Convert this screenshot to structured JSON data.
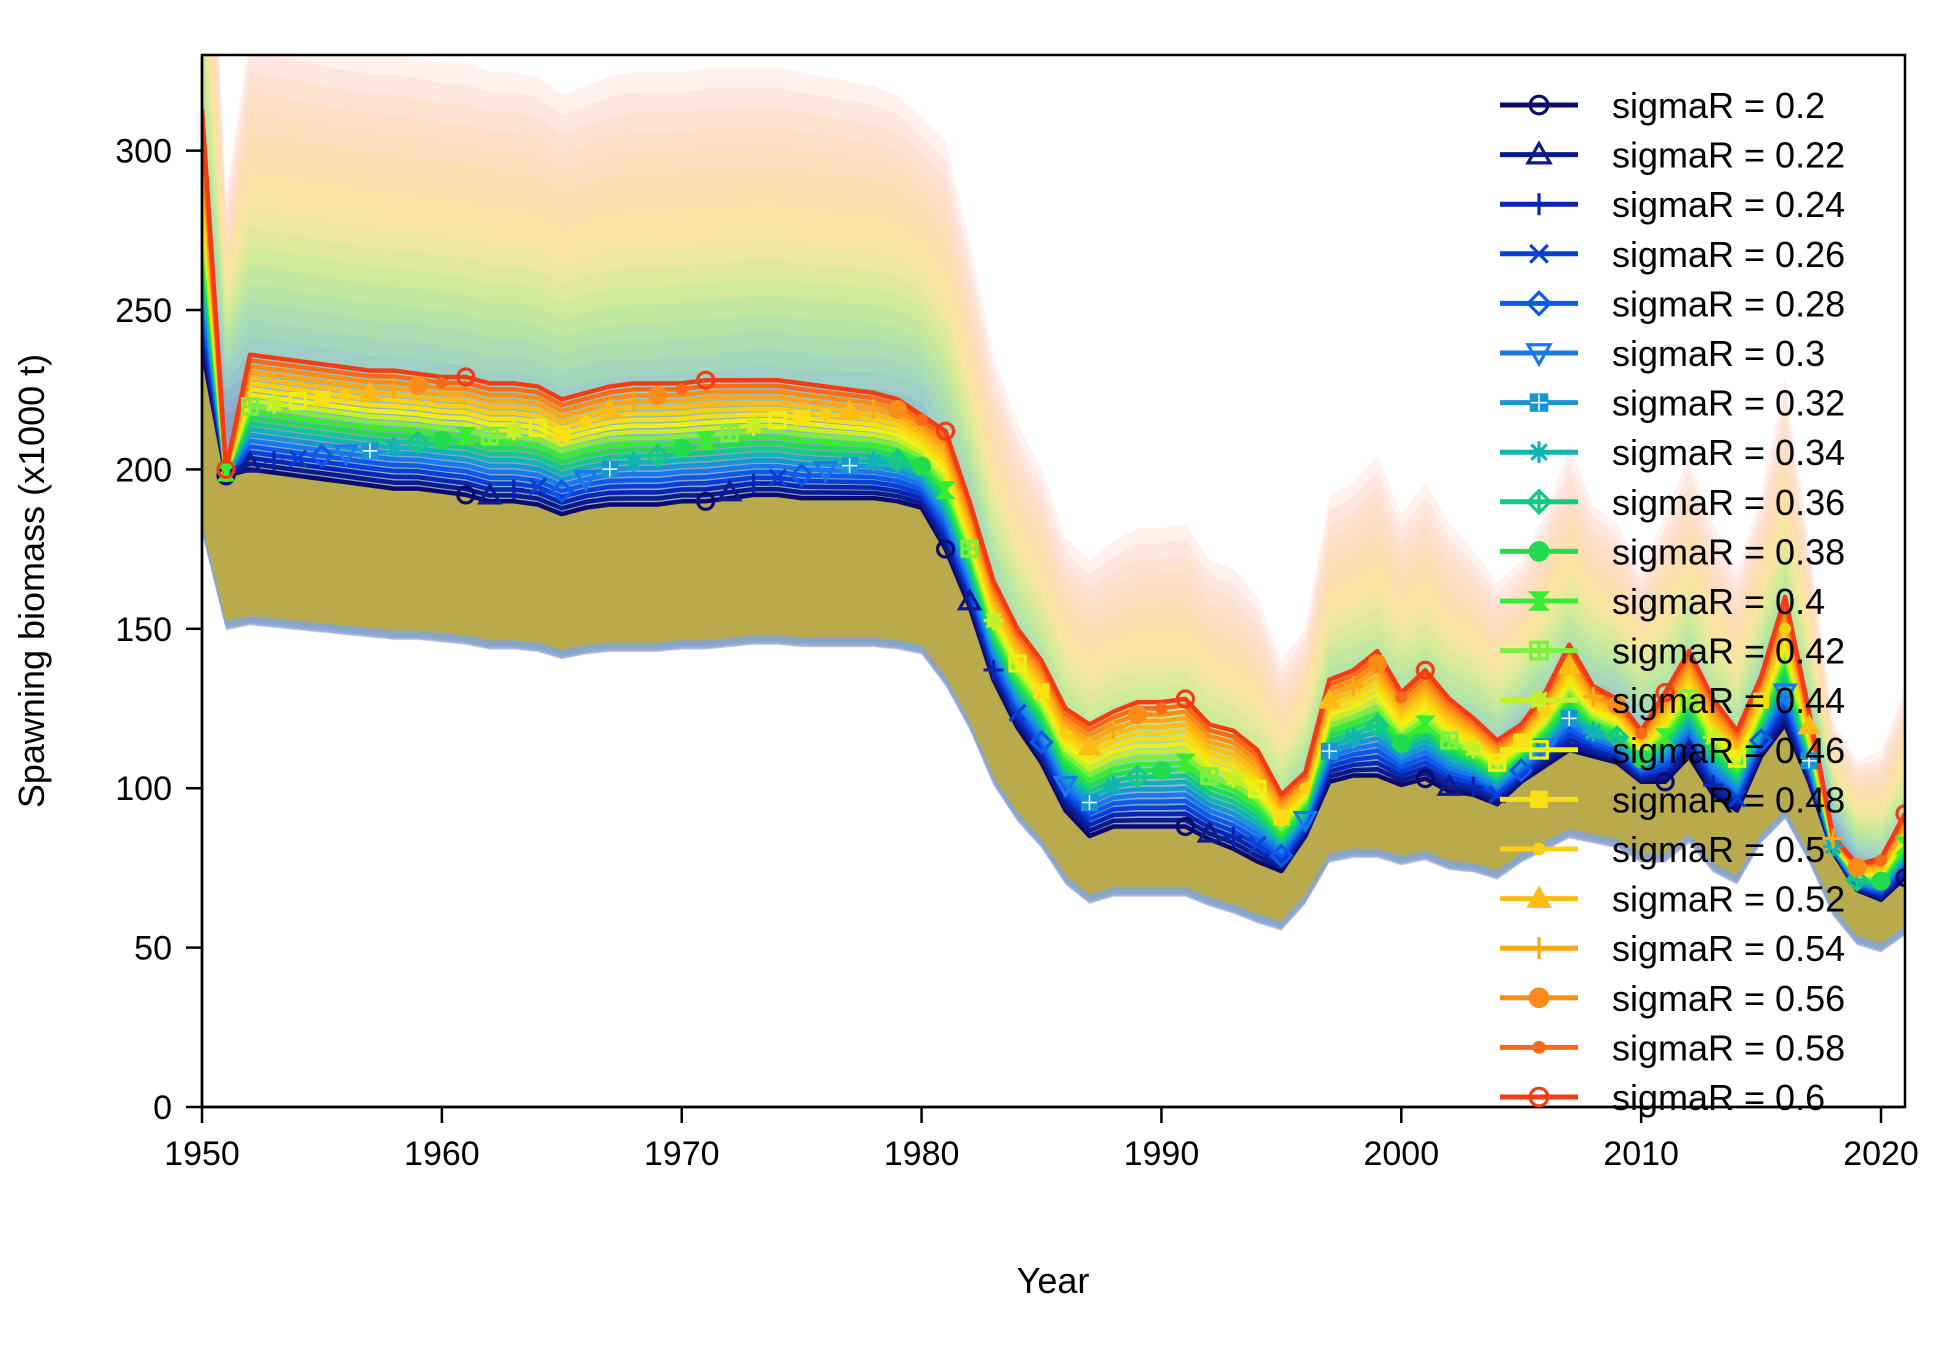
{
  "chart_data": {
    "type": "line",
    "title": "",
    "xlabel": "Year",
    "ylabel": "Spawning biomass (x1000 t)",
    "xlim": [
      1950,
      2021
    ],
    "ylim": [
      0,
      330
    ],
    "x_ticks": [
      "1950",
      "1960",
      "1970",
      "1980",
      "1990",
      "2000",
      "2010",
      "2020"
    ],
    "y_ticks": [
      "0",
      "50",
      "100",
      "150",
      "200",
      "250",
      "300"
    ],
    "legend_position": "top-right",
    "years": [
      1950,
      1951,
      1952,
      1953,
      1954,
      1955,
      1956,
      1957,
      1958,
      1959,
      1960,
      1961,
      1962,
      1963,
      1964,
      1965,
      1966,
      1967,
      1968,
      1969,
      1970,
      1971,
      1972,
      1973,
      1974,
      1975,
      1976,
      1977,
      1978,
      1979,
      1980,
      1981,
      1982,
      1983,
      1984,
      1985,
      1986,
      1987,
      1988,
      1989,
      1990,
      1991,
      1992,
      1993,
      1994,
      1995,
      1996,
      1997,
      1998,
      1999,
      2000,
      2001,
      2002,
      2003,
      2004,
      2005,
      2006,
      2007,
      2008,
      2009,
      2010,
      2011,
      2012,
      2013,
      2014,
      2015,
      2016,
      2017,
      2018,
      2019,
      2020,
      2021
    ],
    "low_series": {
      "name": "sigmaR = 0.2",
      "values": [
        238,
        198,
        200,
        199,
        198,
        197,
        196,
        195,
        194,
        194,
        193,
        192,
        190,
        190,
        189,
        186,
        188,
        189,
        189,
        189,
        190,
        190,
        191,
        192,
        192,
        191,
        191,
        191,
        191,
        190,
        188,
        175,
        157,
        134,
        119,
        108,
        93,
        85,
        88,
        88,
        88,
        88,
        84,
        81,
        77,
        74,
        85,
        102,
        104,
        104,
        101,
        103,
        99,
        98,
        95,
        102,
        107,
        112,
        110,
        108,
        102,
        102,
        110,
        98,
        93,
        110,
        120,
        102,
        80,
        68,
        65,
        72
      ]
    },
    "high_series": {
      "name": "sigmaR = 0.6",
      "values": [
        313,
        200,
        236,
        235,
        234,
        233,
        232,
        231,
        231,
        230,
        229,
        229,
        227,
        227,
        226,
        222,
        224,
        226,
        227,
        227,
        227,
        228,
        228,
        228,
        228,
        227,
        226,
        225,
        224,
        222,
        217,
        212,
        190,
        165,
        150,
        140,
        125,
        120,
        124,
        127,
        127,
        128,
        120,
        118,
        112,
        98,
        105,
        134,
        137,
        143,
        130,
        137,
        128,
        122,
        115,
        120,
        130,
        145,
        132,
        128,
        118,
        130,
        143,
        128,
        118,
        135,
        160,
        124,
        85,
        76,
        78,
        92
      ]
    },
    "series": [
      {
        "name": "sigmaR = 0.2",
        "color": "#0b0b6e",
        "marker": "circle"
      },
      {
        "name": "sigmaR = 0.22",
        "color": "#0d1a8a",
        "marker": "triangle"
      },
      {
        "name": "sigmaR = 0.24",
        "color": "#0a25b0",
        "marker": "plus"
      },
      {
        "name": "sigmaR = 0.26",
        "color": "#0a3fd6",
        "marker": "x"
      },
      {
        "name": "sigmaR = 0.28",
        "color": "#0e5ae8",
        "marker": "diamond"
      },
      {
        "name": "sigmaR = 0.3",
        "color": "#1a78ee",
        "marker": "triangle-down"
      },
      {
        "name": "sigmaR = 0.32",
        "color": "#1796d4",
        "marker": "square-plus"
      },
      {
        "name": "sigmaR = 0.34",
        "color": "#10b4b4",
        "marker": "asterisk"
      },
      {
        "name": "sigmaR = 0.36",
        "color": "#14c886",
        "marker": "diamond-plus"
      },
      {
        "name": "sigmaR = 0.38",
        "color": "#22dc50",
        "marker": "filled-circle"
      },
      {
        "name": "sigmaR = 0.4",
        "color": "#35ee30",
        "marker": "hourglass"
      },
      {
        "name": "sigmaR = 0.42",
        "color": "#7cf03c",
        "marker": "square-grid"
      },
      {
        "name": "sigmaR = 0.44",
        "color": "#c8f028",
        "marker": "star"
      },
      {
        "name": "sigmaR = 0.46",
        "color": "#eef014",
        "marker": "square"
      },
      {
        "name": "sigmaR = 0.48",
        "color": "#f8e012",
        "marker": "filled-square"
      },
      {
        "name": "sigmaR = 0.5",
        "color": "#fbd012",
        "marker": "small-dot"
      },
      {
        "name": "sigmaR = 0.52",
        "color": "#fcbc14",
        "marker": "filled-triangle"
      },
      {
        "name": "sigmaR = 0.54",
        "color": "#fca616",
        "marker": "plus"
      },
      {
        "name": "sigmaR = 0.56",
        "color": "#fc8c18",
        "marker": "filled-circle"
      },
      {
        "name": "sigmaR = 0.58",
        "color": "#f86a18",
        "marker": "small-dot"
      },
      {
        "name": "sigmaR = 0.6",
        "color": "#f43c14",
        "marker": "circle"
      }
    ]
  }
}
